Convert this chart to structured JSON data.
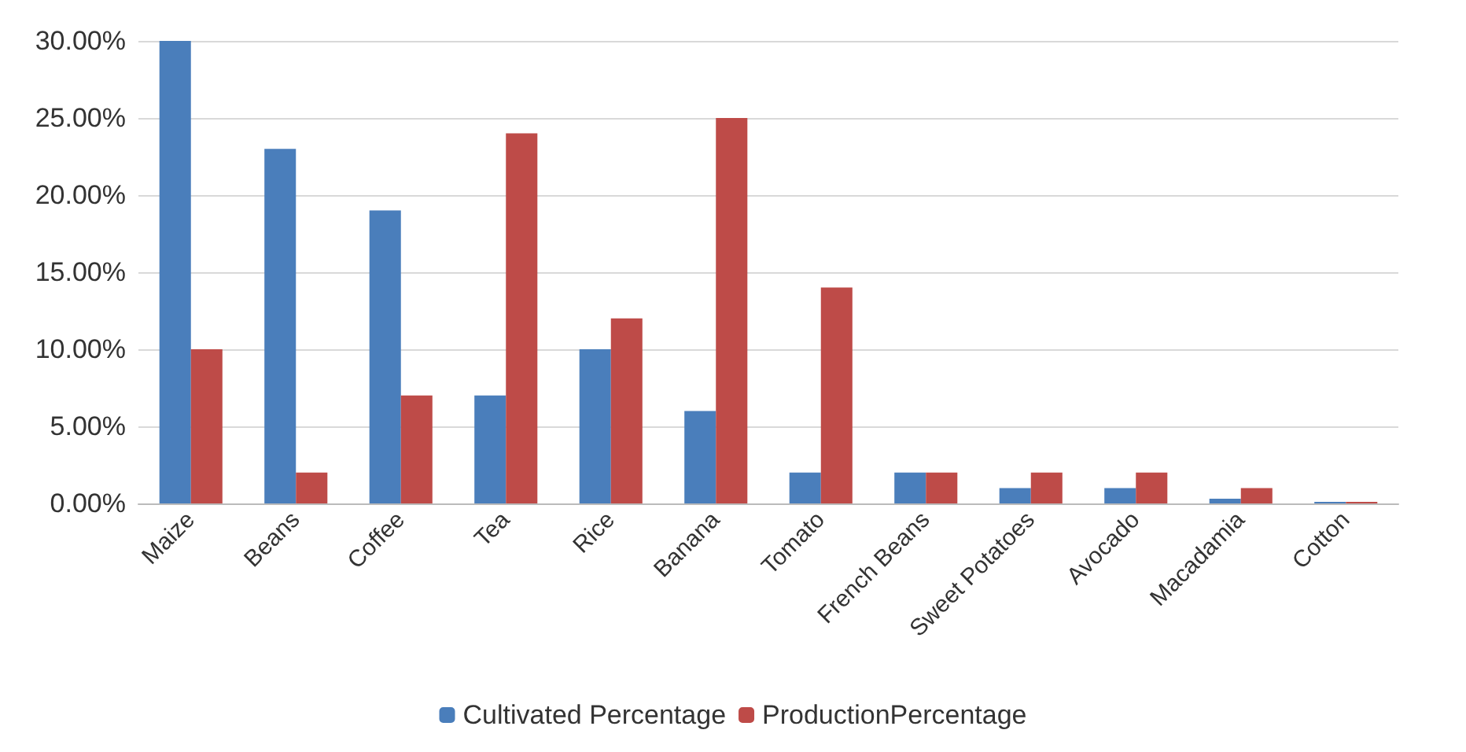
{
  "chart_data": {
    "type": "bar",
    "categories": [
      "Maize",
      "Beans",
      "Coffee",
      "Tea",
      "Rice",
      "Banana",
      "Tomato",
      "French Beans",
      "Sweet Potatoes",
      "Avocado",
      "Macadamia",
      "Cotton"
    ],
    "series": [
      {
        "name": "Cultivated Percentage",
        "color": "#4a7ebb",
        "values": [
          30,
          23,
          19,
          7,
          10,
          6,
          2,
          2,
          1,
          1,
          0.3,
          0.1
        ]
      },
      {
        "name": "ProductionPercentage",
        "color": "#be4b48",
        "values": [
          10,
          2,
          7,
          24,
          12,
          25,
          14,
          2,
          2,
          2,
          1,
          0.1
        ]
      }
    ],
    "ylim": [
      0,
      30
    ],
    "yticks": [
      {
        "value": 0,
        "label": "0.00%"
      },
      {
        "value": 5,
        "label": "5.00%"
      },
      {
        "value": 10,
        "label": "10.00%"
      },
      {
        "value": 15,
        "label": "15.00%"
      },
      {
        "value": 20,
        "label": "20.00%"
      },
      {
        "value": 25,
        "label": "25.00%"
      },
      {
        "value": 30,
        "label": "30.00%"
      }
    ],
    "grid": "y",
    "legend": "bottom"
  }
}
